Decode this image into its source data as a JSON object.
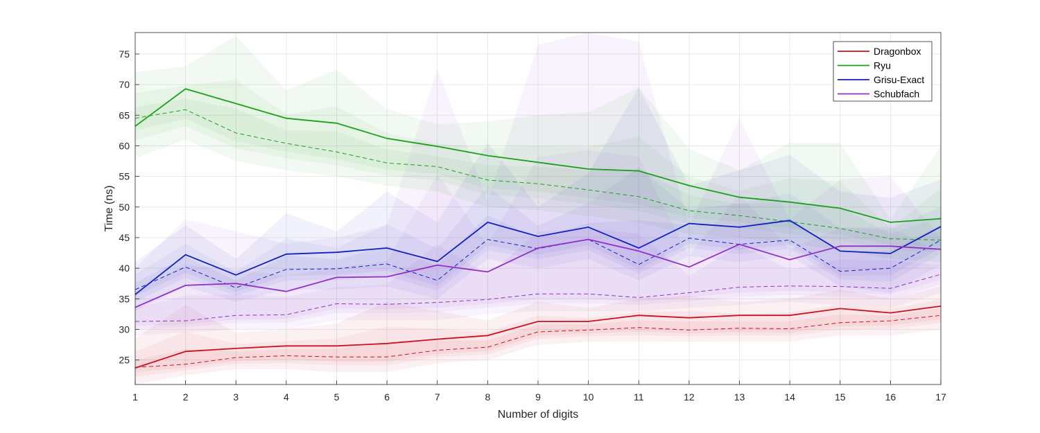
{
  "chart_data": {
    "type": "line",
    "title": "",
    "xlabel": "Number of digits",
    "ylabel": "Time (ns)",
    "xlim": [
      1,
      17
    ],
    "ylim": [
      21,
      78.5
    ],
    "xticks": [
      1,
      2,
      3,
      4,
      5,
      6,
      7,
      8,
      9,
      10,
      11,
      12,
      13,
      14,
      15,
      16,
      17
    ],
    "xtick_labels": [
      "1",
      "2",
      "3",
      "4",
      "5",
      "6",
      "7",
      "8",
      "9",
      "10",
      "11",
      "12",
      "13",
      "14",
      "15",
      "16",
      "17"
    ],
    "yticks": [
      25,
      30,
      35,
      40,
      45,
      50,
      55,
      60,
      65,
      70,
      75
    ],
    "ytick_labels": [
      "25",
      "30",
      "35",
      "40",
      "45",
      "50",
      "55",
      "60",
      "65",
      "70",
      "75"
    ],
    "grid": true,
    "legend_position": "top-right",
    "x": [
      1,
      2,
      3,
      4,
      5,
      6,
      7,
      8,
      9,
      10,
      11,
      12,
      13,
      14,
      15,
      16,
      17
    ],
    "series": [
      {
        "name": "Dragonbox",
        "color": "#cc1020",
        "mean": [
          23.7,
          26.4,
          26.9,
          27.3,
          27.3,
          27.7,
          28.4,
          29.0,
          31.3,
          31.3,
          32.3,
          31.9,
          32.3,
          32.3,
          33.4,
          32.7,
          33.8
        ],
        "median": [
          23.8,
          24.3,
          25.4,
          25.7,
          25.5,
          25.5,
          26.6,
          27.1,
          29.6,
          29.9,
          30.3,
          29.9,
          30.2,
          30.1,
          31.1,
          31.4,
          32.3
        ],
        "max": [
          28.5,
          34.0,
          29.5,
          30.0,
          31.0,
          34.5,
          33.0,
          31.5,
          34.5,
          33.5,
          35.0,
          35.5,
          34.5,
          35.0,
          36.5,
          35.0,
          37.0
        ],
        "min": [
          21.0,
          22.5,
          23.5,
          23.5,
          23.0,
          23.0,
          24.5,
          25.0,
          27.5,
          28.0,
          28.0,
          28.0,
          28.0,
          28.0,
          29.0,
          29.0,
          30.0
        ]
      },
      {
        "name": "Ryu",
        "color": "#1aa01a",
        "mean": [
          63.2,
          69.3,
          66.9,
          64.5,
          63.7,
          61.2,
          59.9,
          58.4,
          57.3,
          56.2,
          55.9,
          53.5,
          51.6,
          50.8,
          49.8,
          47.5,
          48.1
        ],
        "median": [
          64.5,
          65.9,
          62.1,
          60.4,
          59.0,
          57.2,
          56.6,
          54.4,
          53.8,
          52.8,
          51.7,
          49.4,
          48.6,
          47.6,
          46.5,
          44.8,
          44.6
        ],
        "max": [
          72.0,
          73.0,
          78.0,
          69.0,
          72.5,
          66.0,
          63.5,
          64.0,
          65.0,
          65.5,
          69.5,
          59.5,
          56.0,
          60.5,
          60.5,
          48.0,
          60.0
        ],
        "min": [
          58.0,
          61.0,
          57.5,
          56.0,
          55.0,
          53.5,
          52.5,
          50.0,
          49.5,
          48.5,
          47.5,
          45.5,
          45.0,
          44.0,
          43.0,
          41.5,
          41.0
        ]
      },
      {
        "name": "Grisu-Exact",
        "color": "#1020c0",
        "mean": [
          35.7,
          42.2,
          38.9,
          42.3,
          42.6,
          43.3,
          41.1,
          47.5,
          45.2,
          46.7,
          43.3,
          47.3,
          46.7,
          47.8,
          42.8,
          42.4,
          46.8
        ],
        "median": [
          36.5,
          40.2,
          36.8,
          39.8,
          39.9,
          40.7,
          38.0,
          44.7,
          43.2,
          44.7,
          40.6,
          44.9,
          43.9,
          44.6,
          39.5,
          40.0,
          44.6
        ],
        "max": [
          41.0,
          47.0,
          41.5,
          49.0,
          46.0,
          52.5,
          47.5,
          60.5,
          50.0,
          55.5,
          69.5,
          53.5,
          56.0,
          58.5,
          52.5,
          51.5,
          54.5
        ],
        "min": [
          33.0,
          37.0,
          34.5,
          36.5,
          36.5,
          37.0,
          35.0,
          41.5,
          40.0,
          41.5,
          38.0,
          42.0,
          41.0,
          42.0,
          37.0,
          36.0,
          40.5
        ]
      },
      {
        "name": "Schubfach",
        "color": "#9030c8",
        "mean": [
          33.6,
          37.2,
          37.5,
          36.2,
          38.5,
          38.6,
          40.5,
          39.4,
          43.3,
          44.7,
          42.8,
          40.2,
          43.9,
          41.4,
          43.6,
          43.6,
          43.1
        ],
        "median": [
          31.3,
          31.4,
          32.3,
          32.4,
          34.2,
          34.1,
          34.4,
          34.9,
          35.8,
          35.8,
          35.2,
          36.0,
          36.9,
          37.1,
          37.0,
          36.7,
          39.0
        ],
        "max": [
          40.0,
          48.0,
          46.0,
          44.0,
          45.0,
          47.0,
          72.5,
          51.0,
          76.5,
          78.5,
          77.0,
          47.0,
          64.5,
          48.0,
          54.5,
          55.0,
          45.0
        ],
        "min": [
          29.0,
          29.5,
          30.0,
          30.0,
          31.5,
          31.5,
          31.5,
          32.5,
          33.0,
          33.0,
          33.0,
          33.5,
          34.0,
          34.5,
          34.0,
          33.5,
          36.0
        ]
      }
    ]
  }
}
